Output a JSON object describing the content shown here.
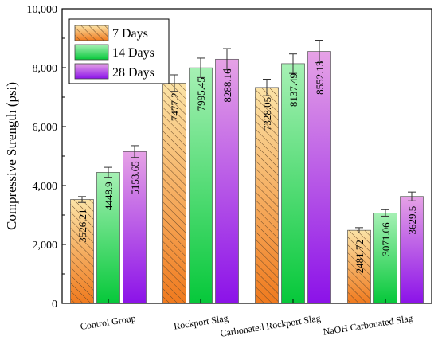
{
  "chart_data": {
    "type": "bar",
    "title": "",
    "xlabel": "",
    "ylabel": "Compressive Strength (psi)",
    "ylim": [
      0,
      10000
    ],
    "yticks": [
      0,
      2000,
      4000,
      6000,
      8000,
      10000
    ],
    "ytick_labels": [
      "0",
      "2,000",
      "4,000",
      "6,000",
      "8,000",
      "10,000"
    ],
    "categories": [
      "Control Group",
      "Rockport Slag",
      "Carbonated Rockport Slag",
      "NaOH Carbonated Slag"
    ],
    "legend_position": "top-left",
    "grid": false,
    "series": [
      {
        "name": "7 Days",
        "pattern": "hatched",
        "colors": [
          "#fbe3a6",
          "#f07a1e"
        ],
        "values": [
          3526.21,
          7477.2,
          7328.05,
          2481.72
        ],
        "labels": [
          "3526.21",
          "7477.2",
          "7328.05",
          "2481.72"
        ],
        "errors": [
          100,
          280,
          280,
          90
        ]
      },
      {
        "name": "14 Days",
        "pattern": "solid",
        "colors": [
          "#a6f0b4",
          "#06c83a"
        ],
        "values": [
          4448.9,
          7995.45,
          8137.49,
          3071.06
        ],
        "labels": [
          "4448.9",
          "7995.45",
          "8137.49",
          "3071.06"
        ],
        "errors": [
          170,
          330,
          330,
          110
        ]
      },
      {
        "name": "28 Days",
        "pattern": "solid",
        "colors": [
          "#e6a2e6",
          "#8b12e8"
        ],
        "values": [
          5153.65,
          8288.16,
          8552.13,
          3629.5
        ],
        "labels": [
          "5153.65",
          "8288.16",
          "8552.13",
          "3629.5"
        ],
        "errors": [
          200,
          360,
          380,
          150
        ]
      }
    ]
  }
}
